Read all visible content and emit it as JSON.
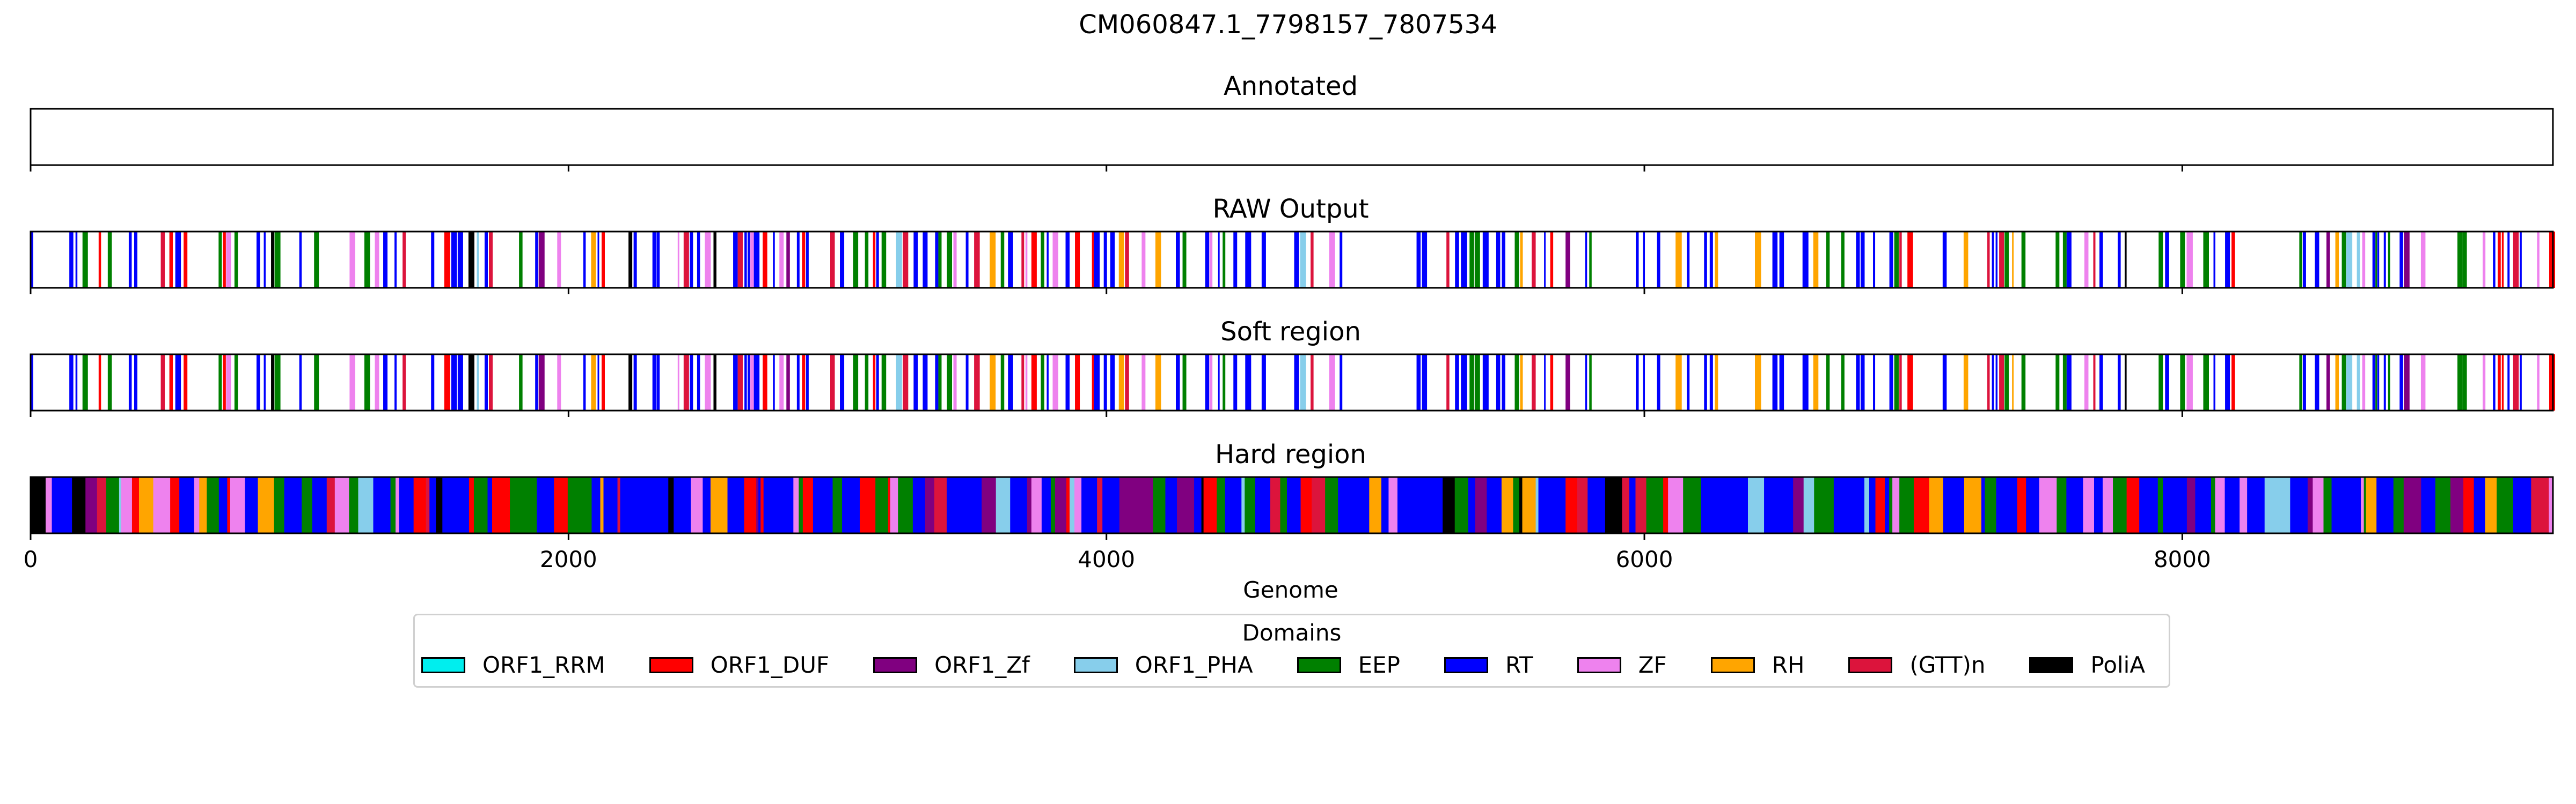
{
  "chart_data": {
    "type": "bar",
    "title": "CM060847.1_7798157_7807534",
    "xlabel": "Genome",
    "xlim": [
      0,
      9378
    ],
    "xticks": [
      0,
      2000,
      4000,
      6000,
      8000
    ],
    "tick_labels": [
      "0",
      "2000",
      "4000",
      "6000",
      "8000"
    ],
    "tracks": [
      {
        "name": "Annotated",
        "fill": "sparse",
        "density": 0
      },
      {
        "name": "RAW Output",
        "fill": "sparse",
        "density": 0.55
      },
      {
        "name": "Soft region",
        "fill": "sparse",
        "density": 0.55
      },
      {
        "name": "Hard region",
        "fill": "dense",
        "density": 1.0
      }
    ],
    "legend": {
      "title": "Domains",
      "placement": "bottom-center",
      "items": [
        {
          "label": "ORF1_RRM",
          "color": "#00eeee"
        },
        {
          "label": "ORF1_DUF",
          "color": "#ff0000"
        },
        {
          "label": "ORF1_Zf",
          "color": "#800080"
        },
        {
          "label": "ORF1_PHA",
          "color": "#87ceeb"
        },
        {
          "label": "EEP",
          "color": "#008000"
        },
        {
          "label": "RT",
          "color": "#0000ff"
        },
        {
          "label": "ZF",
          "color": "#ee82ee"
        },
        {
          "label": "RH",
          "color": "#ffa500"
        },
        {
          "label": "(GTT)n",
          "color": "#dc143c"
        },
        {
          "label": "PoliA",
          "color": "#000000"
        }
      ]
    },
    "domain_weights": {
      "RT": 0.42,
      "EEP": 0.17,
      "ORF1_DUF": 0.09,
      "ZF": 0.08,
      "RH": 0.07,
      "ORF1_Zf": 0.06,
      "(GTT)n": 0.05,
      "ORF1_PHA": 0.04,
      "PoliA": 0.02
    }
  }
}
